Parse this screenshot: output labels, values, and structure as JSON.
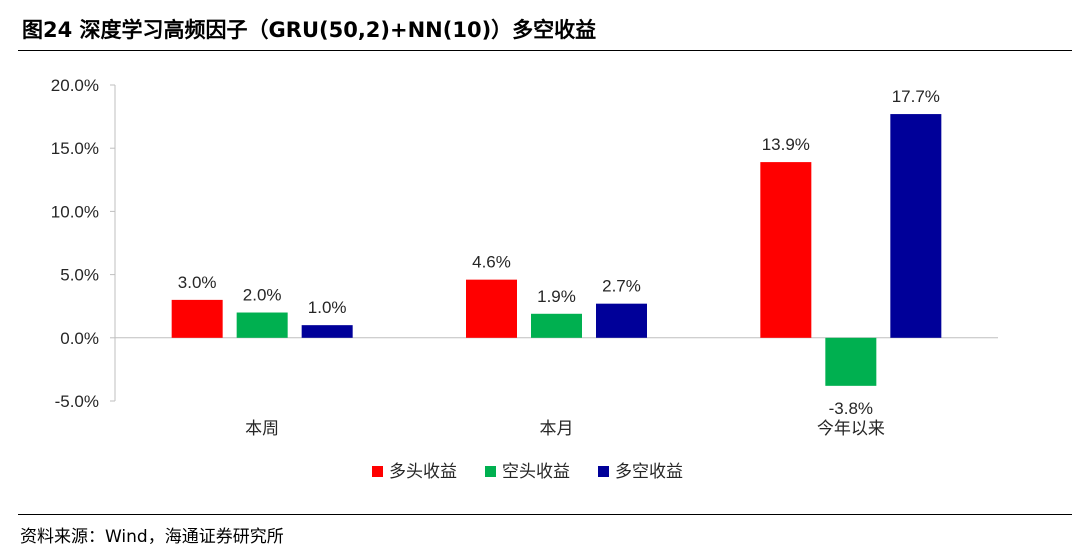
{
  "title": "图24 深度学习高频因子（GRU(50,2)+NN(10)）多空收益",
  "source": "资料来源：Wind，海通证券研究所",
  "chart_data": {
    "type": "bar",
    "categories": [
      "本周",
      "本月",
      "今年以来"
    ],
    "series": [
      {
        "name": "多头收益",
        "color": "#ff0000",
        "values": [
          3.0,
          4.6,
          13.9
        ],
        "labels": [
          "3.0%",
          "4.6%",
          "13.9%"
        ]
      },
      {
        "name": "空头收益",
        "color": "#00b050",
        "values": [
          2.0,
          1.9,
          -3.8
        ],
        "labels": [
          "2.0%",
          "1.9%",
          "-3.8%"
        ]
      },
      {
        "name": "多空收益",
        "color": "#000099",
        "values": [
          1.0,
          2.7,
          17.7
        ],
        "labels": [
          "1.0%",
          "2.7%",
          "17.7%"
        ]
      }
    ],
    "ylim": [
      -5.0,
      20.0
    ],
    "yticks": [
      20.0,
      15.0,
      10.0,
      5.0,
      0.0,
      -5.0
    ],
    "ytick_labels": [
      "20.0%",
      "15.0%",
      "10.0%",
      "5.0%",
      "0.0%",
      "-5.0%"
    ],
    "grid": false,
    "legend": "bottom"
  }
}
